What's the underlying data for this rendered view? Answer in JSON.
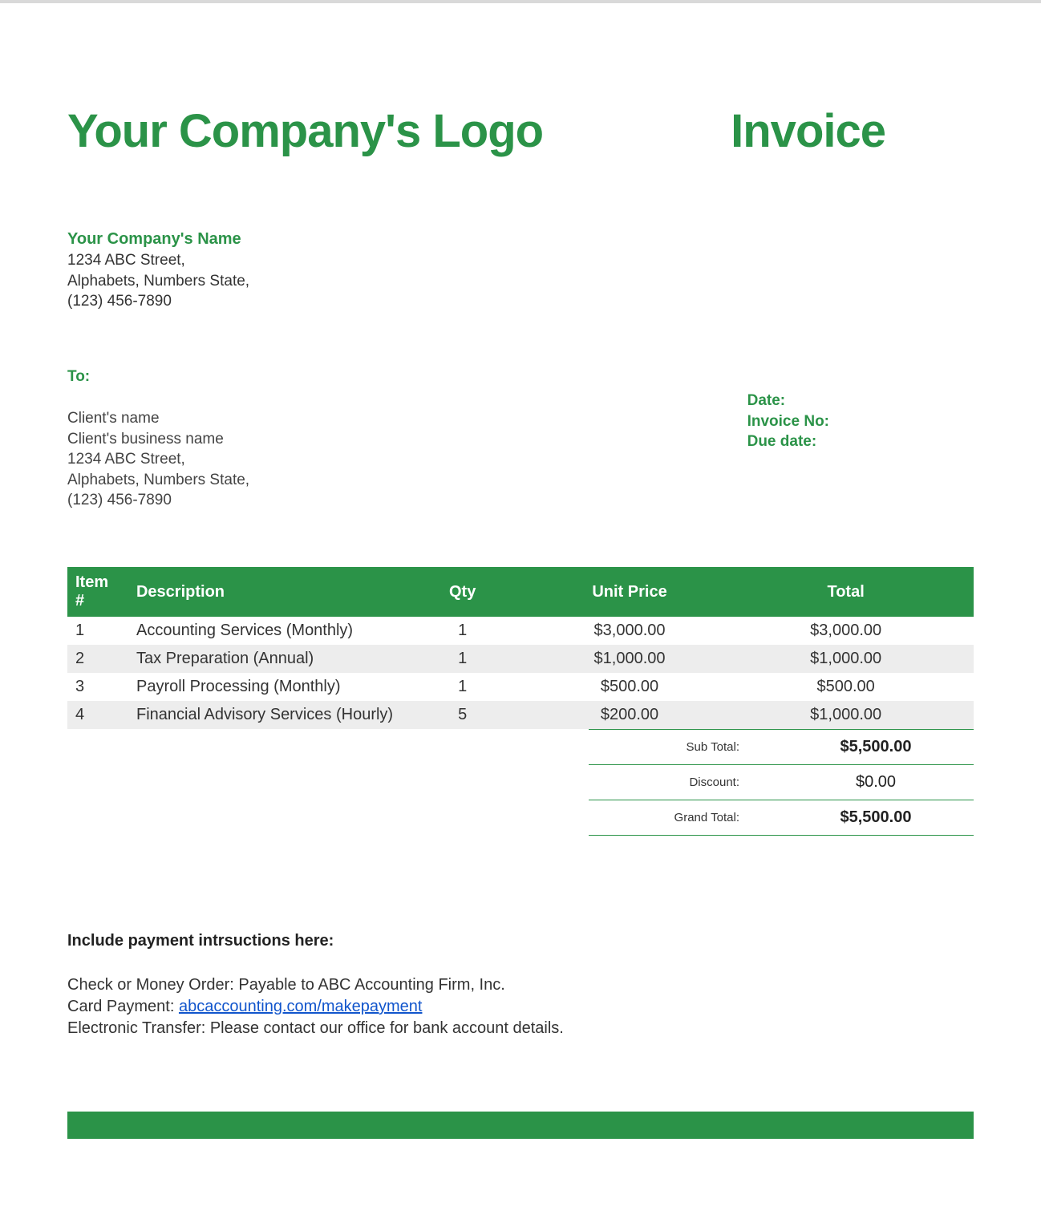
{
  "colors": {
    "accent": "#2b9348",
    "row_alt": "#ededed",
    "text": "#333333",
    "link": "#1155cc"
  },
  "header": {
    "logo_text": "Your Company's Logo",
    "invoice_title": "Invoice"
  },
  "company": {
    "name": "Your Company's Name",
    "street": "1234 ABC Street,",
    "city_state": "Alphabets, Numbers State,",
    "phone": "(123) 456-7890"
  },
  "to_label": "To:",
  "client": {
    "name": "Client's name",
    "business": "Client's business name",
    "street": "1234 ABC Street,",
    "city_state": "Alphabets, Numbers State,",
    "phone": "(123) 456-7890"
  },
  "meta": {
    "date_label": "Date:",
    "invoice_no_label": "Invoice No:",
    "due_date_label": "Due date:"
  },
  "table": {
    "columns": {
      "item": "Item #",
      "description": "Description",
      "qty": "Qty",
      "unit_price": "Unit Price",
      "total": "Total"
    },
    "rows": [
      {
        "item": "1",
        "description": "Accounting Services (Monthly)",
        "qty": "1",
        "unit_price": "$3,000.00",
        "total": "$3,000.00"
      },
      {
        "item": "2",
        "description": "Tax Preparation (Annual)",
        "qty": "1",
        "unit_price": "$1,000.00",
        "total": "$1,000.00"
      },
      {
        "item": "3",
        "description": "Payroll Processing (Monthly)",
        "qty": "1",
        "unit_price": "$500.00",
        "total": "$500.00"
      },
      {
        "item": "4",
        "description": "Financial Advisory Services (Hourly)",
        "qty": "5",
        "unit_price": "$200.00",
        "total": "$1,000.00"
      }
    ]
  },
  "totals": {
    "subtotal_label": "Sub Total:",
    "subtotal_value": "$5,500.00",
    "discount_label": "Discount:",
    "discount_value": "$0.00",
    "grand_label": "Grand Total:",
    "grand_value": "$5,500.00"
  },
  "payment": {
    "heading": "Include payment intrsuctions here:",
    "line1": "Check or Money Order: Payable to ABC Accounting Firm, Inc.",
    "line2_prefix": "Card Payment: ",
    "line2_link_text": "abcaccounting.com/makepayment",
    "line3": "Electronic Transfer: Please contact our office for bank account details."
  }
}
